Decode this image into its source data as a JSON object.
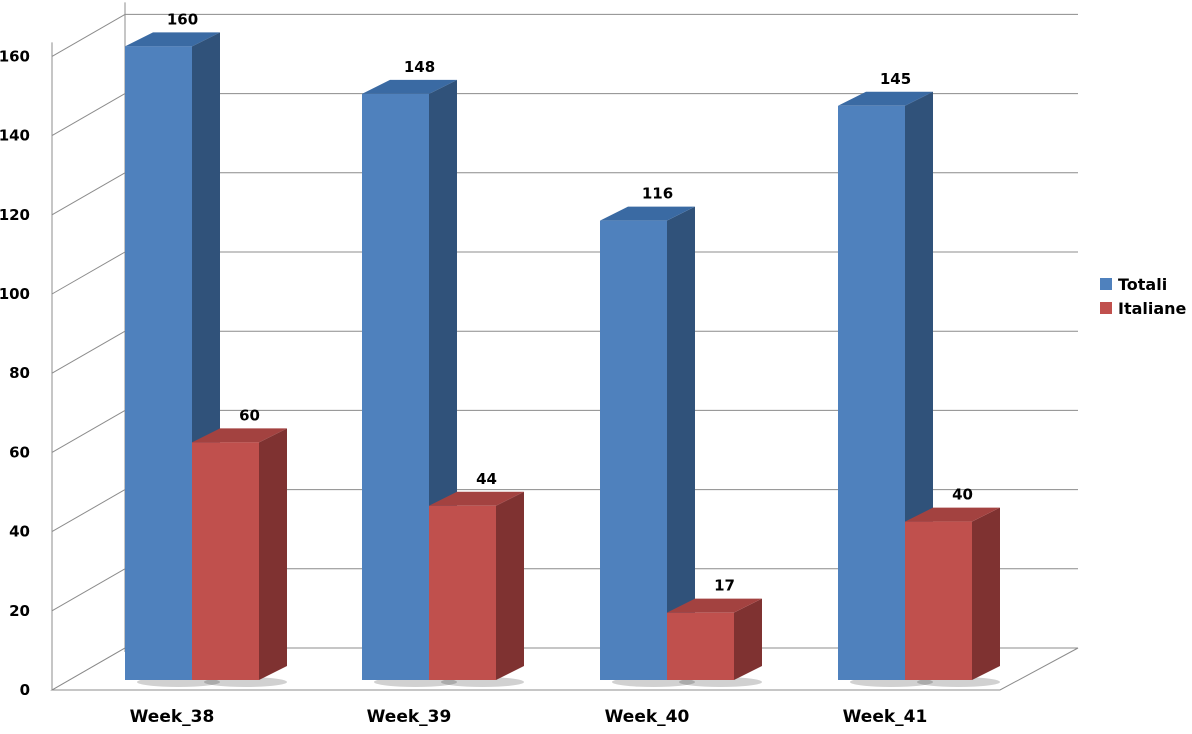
{
  "chart_data": {
    "type": "bar",
    "categories": [
      "Week_38",
      "Week_39",
      "Week_40",
      "Week_41"
    ],
    "series": [
      {
        "name": "Totali",
        "values": [
          160,
          148,
          116,
          145
        ],
        "color": "#4F81BD",
        "side_color": "#30527A",
        "top_color": "#3A6AA3"
      },
      {
        "name": "Italiane",
        "values": [
          60,
          44,
          17,
          40
        ],
        "color": "#C0504D",
        "side_color": "#7F3231",
        "top_color": "#A34240"
      }
    ],
    "yticks": [
      0,
      20,
      40,
      60,
      80,
      100,
      120,
      140,
      160
    ],
    "ylim": [
      0,
      160
    ],
    "grid": true,
    "legend_position": "right",
    "title": "",
    "xlabel": "",
    "ylabel": ""
  }
}
